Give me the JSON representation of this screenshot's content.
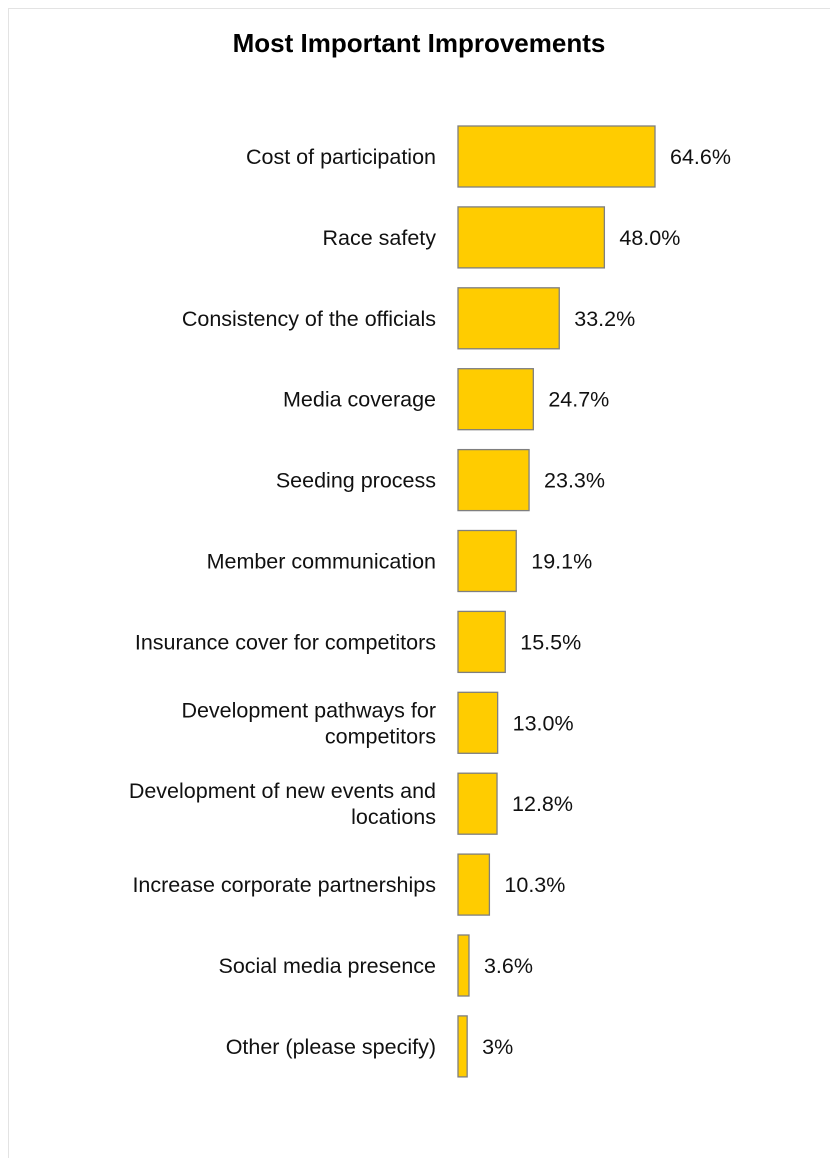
{
  "chart_data": {
    "type": "bar",
    "orientation": "horizontal",
    "title": "Most Important Improvements",
    "categories": [
      [
        "Cost of participation"
      ],
      [
        "Race safety"
      ],
      [
        "Consistency of the officials"
      ],
      [
        "Media coverage"
      ],
      [
        "Seeding process"
      ],
      [
        "Member communication"
      ],
      [
        "Insurance cover for competitors"
      ],
      [
        "Development pathways for",
        "competitors"
      ],
      [
        "Development of new events and",
        "locations"
      ],
      [
        "Increase corporate partnerships"
      ],
      [
        "Social media presence"
      ],
      [
        "Other (please specify)"
      ]
    ],
    "values": [
      64.6,
      48.0,
      33.2,
      24.7,
      23.3,
      19.1,
      15.5,
      13.0,
      12.8,
      10.3,
      3.6,
      3.0
    ],
    "value_labels": [
      "64.6%",
      "48.0%",
      "33.2%",
      "24.7%",
      "23.3%",
      "19.1%",
      "15.5%",
      "13.0%",
      "12.8%",
      "10.3%",
      "3.6%",
      "3%"
    ],
    "unit": "%",
    "xlim": [
      0,
      100
    ],
    "grid": false,
    "legend": "none",
    "colors": {
      "bar_fill": "#FFCC00",
      "bar_stroke": "#7F7F7F",
      "text": "#111111"
    }
  }
}
